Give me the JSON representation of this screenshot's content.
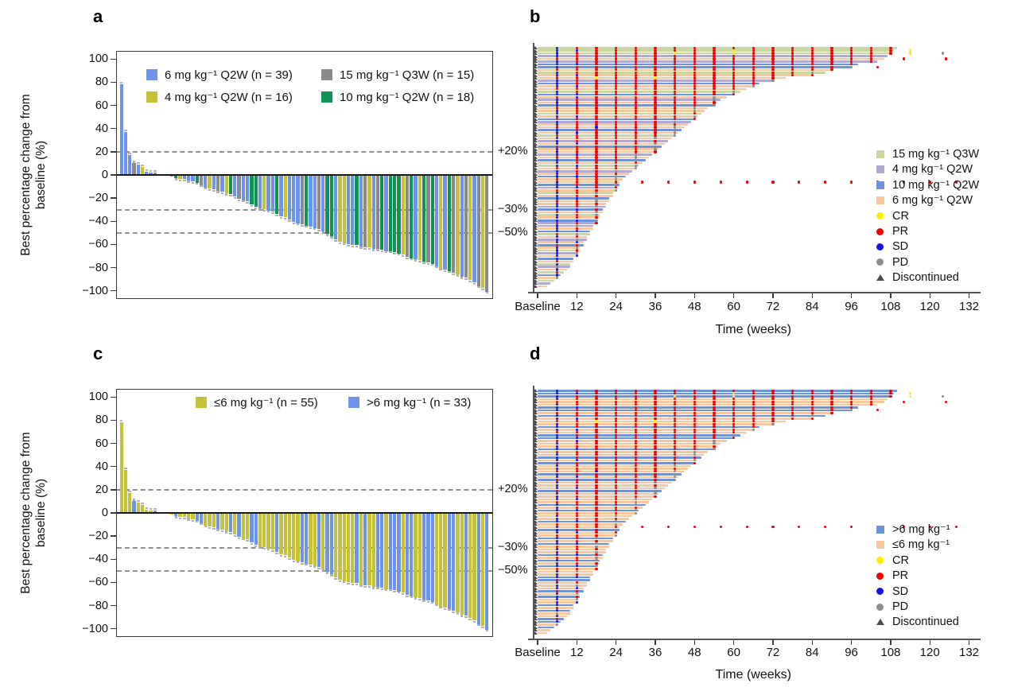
{
  "panel_labels": {
    "a": "a",
    "b": "b",
    "c": "c",
    "d": "d"
  },
  "chart_data": [
    {
      "id": "a",
      "type": "bar",
      "subtype": "waterfall",
      "ylabel": "Best percentage change from baseline (%)",
      "yticks": [
        100,
        80,
        60,
        40,
        20,
        0,
        -20,
        -40,
        -60,
        -80,
        -100
      ],
      "ytick_labels": [
        "100",
        "80",
        "60",
        "40",
        "20",
        "0",
        "−20",
        "−40",
        "−60",
        "−80",
        "−100"
      ],
      "ylim": [
        -107,
        107
      ],
      "grid": false,
      "ref_lines": [
        {
          "y": 20,
          "label": "+20%"
        },
        {
          "y": -30,
          "label": "−30%"
        },
        {
          "y": -50,
          "label": "−50%"
        }
      ],
      "legend": [
        {
          "label": "6 mg kg⁻¹ Q2W (n = 39)",
          "group": "d6"
        },
        {
          "label": "4 mg kg⁻¹ Q2W (n = 16)",
          "group": "d4"
        },
        {
          "label": "15 mg kg⁻¹ Q3W (n = 15)",
          "group": "d15"
        },
        {
          "label": "10 mg kg⁻¹ Q2W (n = 18)",
          "group": "d10"
        }
      ],
      "group_colors": {
        "d6": "#6d94e8",
        "d4": "#c5c23a",
        "d15": "#8a8a8a",
        "d10": "#109455"
      },
      "bars": [
        [
          78,
          "d6"
        ],
        [
          37,
          "d6"
        ],
        [
          17,
          "d6"
        ],
        [
          10,
          "d15"
        ],
        [
          9,
          "d6"
        ],
        [
          7,
          "d4"
        ],
        [
          3,
          "d6"
        ],
        [
          2,
          "d6"
        ],
        [
          2,
          "d15"
        ],
        [
          1,
          "d4"
        ],
        [
          1,
          "d6"
        ],
        [
          0,
          "d6"
        ],
        [
          -1,
          "d6"
        ],
        [
          -2,
          "d10"
        ],
        [
          -3,
          "d4"
        ],
        [
          -3,
          "d6"
        ],
        [
          -4,
          "d6"
        ],
        [
          -5,
          "d6"
        ],
        [
          -6,
          "d10"
        ],
        [
          -8,
          "d15"
        ],
        [
          -10,
          "d6"
        ],
        [
          -11,
          "d4"
        ],
        [
          -12,
          "d6"
        ],
        [
          -13,
          "d15"
        ],
        [
          -14,
          "d6"
        ],
        [
          -15,
          "d4"
        ],
        [
          -16,
          "d10"
        ],
        [
          -18,
          "d6"
        ],
        [
          -20,
          "d15"
        ],
        [
          -21,
          "d6"
        ],
        [
          -22,
          "d6"
        ],
        [
          -25,
          "d10"
        ],
        [
          -27,
          "d10"
        ],
        [
          -28,
          "d6"
        ],
        [
          -29,
          "d4"
        ],
        [
          -30,
          "d6"
        ],
        [
          -31,
          "d6"
        ],
        [
          -33,
          "d10"
        ],
        [
          -35,
          "d6"
        ],
        [
          -36,
          "d4"
        ],
        [
          -38,
          "d6"
        ],
        [
          -40,
          "d6"
        ],
        [
          -41,
          "d6"
        ],
        [
          -42,
          "d15"
        ],
        [
          -43,
          "d10"
        ],
        [
          -44,
          "d6"
        ],
        [
          -45,
          "d6"
        ],
        [
          -46,
          "d15"
        ],
        [
          -48,
          "d6"
        ],
        [
          -50,
          "d10"
        ],
        [
          -52,
          "d10"
        ],
        [
          -55,
          "d6"
        ],
        [
          -57,
          "d4"
        ],
        [
          -58,
          "d4"
        ],
        [
          -59,
          "d6"
        ],
        [
          -60,
          "d6"
        ],
        [
          -60,
          "d10"
        ],
        [
          -61,
          "d6"
        ],
        [
          -62,
          "d15"
        ],
        [
          -62,
          "d4"
        ],
        [
          -63,
          "d6"
        ],
        [
          -63,
          "d15"
        ],
        [
          -64,
          "d10"
        ],
        [
          -65,
          "d6"
        ],
        [
          -65,
          "d10"
        ],
        [
          -66,
          "d10"
        ],
        [
          -67,
          "d10"
        ],
        [
          -68,
          "d4"
        ],
        [
          -70,
          "d15"
        ],
        [
          -71,
          "d10"
        ],
        [
          -72,
          "d6"
        ],
        [
          -73,
          "d4"
        ],
        [
          -74,
          "d10"
        ],
        [
          -75,
          "d15"
        ],
        [
          -76,
          "d10"
        ],
        [
          -78,
          "d6"
        ],
        [
          -80,
          "d4"
        ],
        [
          -81,
          "d6"
        ],
        [
          -82,
          "d10"
        ],
        [
          -84,
          "d15"
        ],
        [
          -85,
          "d4"
        ],
        [
          -87,
          "d6"
        ],
        [
          -88,
          "d15"
        ],
        [
          -90,
          "d4"
        ],
        [
          -92,
          "d6"
        ],
        [
          -95,
          "d15"
        ],
        [
          -97,
          "d4"
        ],
        [
          -100,
          "d15"
        ]
      ]
    },
    {
      "id": "b",
      "type": "swimmer",
      "xlabel": "Time (weeks)",
      "xticks": [
        0,
        12,
        24,
        36,
        48,
        60,
        72,
        84,
        96,
        108,
        120,
        132
      ],
      "xtick_labels": [
        "Baseline",
        "12",
        "24",
        "36",
        "48",
        "60",
        "72",
        "84",
        "96",
        "108",
        "120",
        "132"
      ],
      "assessment_interval_weeks": 6,
      "dose_legend": [
        {
          "label": "15 mg kg⁻¹ Q3W",
          "group": "g15"
        },
        {
          "label": "4 mg kg⁻¹ Q2W",
          "group": "g4"
        },
        {
          "label": "10 mg kg⁻¹ Q2W",
          "group": "g10"
        },
        {
          "label": "6 mg kg⁻¹ Q2W",
          "group": "g6"
        }
      ],
      "marker_legend": [
        {
          "label": "CR",
          "key": "C"
        },
        {
          "label": "PR",
          "key": "R"
        },
        {
          "label": "SD",
          "key": "S"
        },
        {
          "label": "PD",
          "key": "P"
        },
        {
          "label": "Discontinued",
          "key": "T"
        }
      ],
      "group_colors": {
        "g15": "#cbd7a0",
        "g4": "#b3a7d4",
        "g10": "#6b94dd",
        "g6": "#f9c79d"
      },
      "marker_colors": {
        "C": "#ffec00",
        "R": "#f40000",
        "S": "#1414e8",
        "P": "#8c8c8c"
      },
      "triangle_color": "#4d4d4d",
      "rows": [
        [
          110,
          "g15",
          "SRRRRRRRRRRRRRRRRR"
        ],
        [
          109,
          "g15",
          "SSRRRRRRRCRRRRRRRR",
          [
            [
              114,
              "C"
            ]
          ]
        ],
        [
          108,
          "g15",
          "SRRRRRCRRCRRRRRRRR",
          [
            [
              114,
              "C"
            ],
            [
              124,
              "P"
            ]
          ]
        ],
        [
          107,
          "g4",
          "SRRRRRRRRRRRRRRRR"
        ],
        [
          106,
          "g6",
          "RRRRRRRRRRRRRRRRR",
          [
            [
              112,
              "R"
            ],
            [
              125,
              "R"
            ]
          ]
        ],
        [
          104,
          "g4",
          "SRRRRRRRRRRRRRRRR"
        ],
        [
          98,
          "g10",
          "SSRRRRRRRRRRRRRR"
        ],
        [
          96,
          "g10",
          "SRRRRRRRRRRRRRRP",
          [
            [
              104,
              "R"
            ]
          ]
        ],
        [
          90,
          "g6",
          "RRRRRRRRRRRRRRR"
        ],
        [
          88,
          "g15",
          "SRRRRRRRRRRRRP"
        ],
        [
          84,
          "g6",
          "SSRRRRRRRRRRRR"
        ],
        [
          76,
          "g6",
          "RRCRRCRRRRRR"
        ],
        [
          72,
          "g4",
          "SRRRRRRRRRRP"
        ],
        [
          68,
          "g10",
          "SRRRRRRRRRR"
        ],
        [
          66,
          "g6",
          "SSRRRRRRRRP"
        ],
        [
          64,
          "g6",
          "RRRRRRRRRR"
        ],
        [
          62,
          "g15",
          "SRRRRRRRRP"
        ],
        [
          60,
          "g10",
          "SSRRRRRRRR"
        ],
        [
          58,
          "g6",
          "RSRRRRRRP"
        ],
        [
          56,
          "g4",
          "SRRRRRRRP"
        ],
        [
          55,
          "g6",
          "SRRRRRRRR"
        ],
        [
          54,
          "g10",
          "SSRRRRRRP"
        ],
        [
          52,
          "g6",
          "RRRRRRRP"
        ],
        [
          51,
          "g6",
          "SRRRRRRP"
        ],
        [
          50,
          "g15",
          "SRRRRRRR"
        ],
        [
          49,
          "g6",
          "SSRRRRRP"
        ],
        [
          48,
          "g10",
          "RRRRRRRR"
        ],
        [
          47,
          "g4",
          "SRRRRRP"
        ],
        [
          46,
          "g6",
          "SRRRRRR"
        ],
        [
          45,
          "g6",
          "RRSRRRP"
        ],
        [
          44,
          "g10",
          "SRRRRRP"
        ],
        [
          43,
          "g6",
          "SSRRRRP"
        ],
        [
          42,
          "g15",
          "RRRRRRP"
        ],
        [
          41,
          "g6",
          "SRRRRP"
        ],
        [
          40,
          "g4",
          "SRRRRR"
        ],
        [
          39,
          "g6",
          "SSRRRP"
        ],
        [
          38,
          "g10",
          "RRRRRP"
        ],
        [
          37,
          "g6",
          "SRRRRP"
        ],
        [
          36,
          "g6",
          "SRRRRR"
        ],
        [
          35,
          "g4",
          "SSRRP"
        ],
        [
          34,
          "g6",
          "RRRRP"
        ],
        [
          33,
          "g10",
          "SRRRP"
        ],
        [
          32,
          "g6",
          "SRRRR"
        ],
        [
          31,
          "g15",
          "SSRRP"
        ],
        [
          30,
          "g6",
          "RRRRP"
        ],
        [
          29,
          "g4",
          "SRRP"
        ],
        [
          28,
          "g6",
          "SRRR"
        ],
        [
          27,
          "g10",
          "SSRP"
        ],
        [
          26,
          "g6",
          "RRRP"
        ],
        [
          25,
          "g6",
          "SRRR",
          [
            [
              32,
              "R"
            ],
            [
              40,
              "R"
            ],
            [
              48,
              "R"
            ],
            [
              56,
              "R"
            ],
            [
              64,
              "R"
            ],
            [
              72,
              "R"
            ],
            [
              80,
              "R"
            ],
            [
              88,
              "R"
            ],
            [
              96,
              "R"
            ],
            [
              104,
              "R"
            ],
            [
              112,
              "R"
            ],
            [
              120,
              "R"
            ],
            [
              128,
              "R"
            ]
          ]
        ],
        [
          25,
          "g10",
          "SRRP"
        ],
        [
          24,
          "g4",
          "SSRR"
        ],
        [
          24,
          "g6",
          "RRRP"
        ],
        [
          23,
          "g15",
          "SRP"
        ],
        [
          23,
          "g6",
          "SRR"
        ],
        [
          22,
          "g10",
          "SSP"
        ],
        [
          22,
          "g6",
          "RRP"
        ],
        [
          21,
          "g6",
          "SRR"
        ],
        [
          21,
          "g4",
          "SRP"
        ],
        [
          20,
          "g10",
          "SSR"
        ],
        [
          20,
          "g6",
          "RRP"
        ],
        [
          19,
          "g15",
          "SRP"
        ],
        [
          19,
          "g6",
          "SRR"
        ],
        [
          18,
          "g10",
          "SSP"
        ],
        [
          18,
          "g4",
          "RRR"
        ],
        [
          17,
          "g4",
          "SP"
        ],
        [
          17,
          "g6",
          "SR"
        ],
        [
          16,
          "g10",
          "SS"
        ],
        [
          16,
          "g15",
          "RP"
        ],
        [
          15,
          "g6",
          "SR"
        ],
        [
          15,
          "g4",
          "SP"
        ],
        [
          14,
          "g6",
          "SS"
        ],
        [
          14,
          "g10",
          "RR"
        ],
        [
          13,
          "g6",
          "SP"
        ],
        [
          13,
          "g15",
          "SR"
        ],
        [
          12,
          "g4",
          "SP"
        ],
        [
          12,
          "g6",
          "SS"
        ],
        [
          11,
          "g10",
          "S"
        ],
        [
          11,
          "g6",
          "R"
        ],
        [
          10,
          "g15",
          "S"
        ],
        [
          10,
          "g4",
          "P"
        ],
        [
          9,
          "g6",
          "S"
        ],
        [
          8,
          "g15",
          "R"
        ],
        [
          7,
          "g10",
          "S"
        ],
        [
          6,
          "g6",
          "P"
        ],
        [
          5,
          "g15",
          ""
        ],
        [
          4,
          "g4",
          ""
        ],
        [
          3,
          "g6",
          ""
        ]
      ]
    },
    {
      "id": "c",
      "type": "bar",
      "subtype": "waterfall",
      "same_bars_as": "a",
      "ylabel": "Best percentage change from baseline (%)",
      "yticks": [
        100,
        80,
        60,
        40,
        20,
        0,
        -20,
        -40,
        -60,
        -80,
        -100
      ],
      "ytick_labels": [
        "100",
        "80",
        "60",
        "40",
        "20",
        "0",
        "−20",
        "−40",
        "−60",
        "−80",
        "−100"
      ],
      "ylim": [
        -107,
        107
      ],
      "ref_lines": [
        {
          "y": 20,
          "label": "+20%"
        },
        {
          "y": -30,
          "label": "−30%"
        },
        {
          "y": -50,
          "label": "−50%"
        }
      ],
      "legend": [
        {
          "label": "≤6 mg kg⁻¹ (n = 55)",
          "group": "d4"
        },
        {
          "label": ">6 mg kg⁻¹ (n = 33)",
          "group": "d15"
        }
      ],
      "group_colors": {
        "d6": "#c5c23a",
        "d4": "#c5c23a",
        "d15": "#6d94e8",
        "d10": "#6d94e8"
      }
    },
    {
      "id": "d",
      "type": "swimmer",
      "same_rows_as": "b",
      "xlabel": "Time (weeks)",
      "xticks": [
        0,
        12,
        24,
        36,
        48,
        60,
        72,
        84,
        96,
        108,
        120,
        132
      ],
      "xtick_labels": [
        "Baseline",
        "12",
        "24",
        "36",
        "48",
        "60",
        "72",
        "84",
        "96",
        "108",
        "120",
        "132"
      ],
      "dose_legend": [
        {
          "label": ">6 mg kg⁻¹",
          "group": "g10"
        },
        {
          "label": "≤6 mg kg⁻¹",
          "group": "g6"
        }
      ],
      "marker_legend": [
        {
          "label": "CR",
          "key": "C"
        },
        {
          "label": "PR",
          "key": "R"
        },
        {
          "label": "SD",
          "key": "S"
        },
        {
          "label": "PD",
          "key": "P"
        },
        {
          "label": "Discontinued",
          "key": "T"
        }
      ],
      "group_colors": {
        "g15": "#6b94dd",
        "g4": "#f9c79d",
        "g10": "#6b94dd",
        "g6": "#f9c79d"
      },
      "marker_colors": {
        "C": "#ffec00",
        "R": "#f40000",
        "S": "#1414e8",
        "P": "#8c8c8c"
      },
      "triangle_color": "#4d4d4d"
    }
  ]
}
